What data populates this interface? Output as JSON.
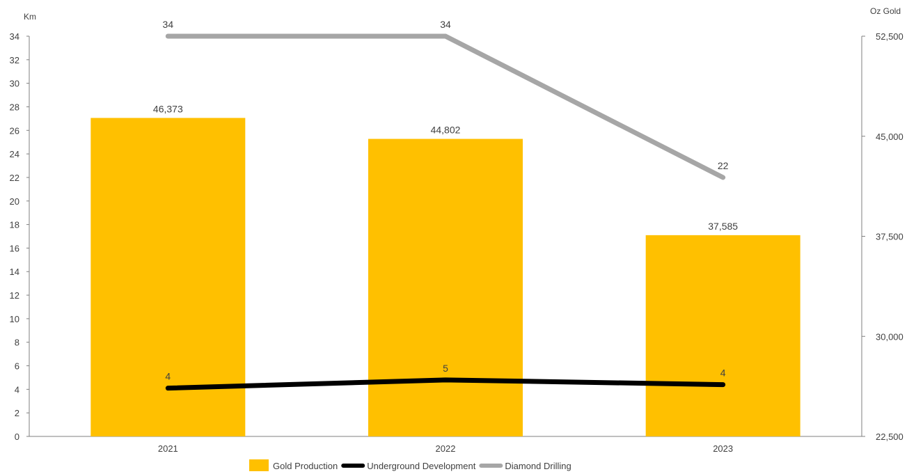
{
  "chart_data": {
    "type": "bar",
    "categories": [
      "2021",
      "2022",
      "2023"
    ],
    "left_axis": {
      "label": "Km",
      "ylim": [
        0,
        34
      ],
      "ticks": [
        "0",
        "2",
        "4",
        "6",
        "8",
        "10",
        "12",
        "14",
        "16",
        "18",
        "20",
        "22",
        "24",
        "26",
        "28",
        "30",
        "32",
        "34"
      ]
    },
    "right_axis": {
      "label": "Oz Gold",
      "ylim": [
        22500,
        52500
      ],
      "ticks": [
        "22,500",
        "30,000",
        "37,500",
        "45,000",
        "52,500"
      ]
    },
    "series": [
      {
        "name": "Gold Production",
        "type": "bar",
        "axis": "right",
        "values": [
          46373,
          44802,
          37585
        ],
        "labels": [
          "46,373",
          "44,802",
          "37,585"
        ],
        "color": "#FFC000"
      },
      {
        "name": "Underground Development",
        "type": "line",
        "axis": "left",
        "values": [
          4.1,
          4.8,
          4.4
        ],
        "labels": [
          "4",
          "5",
          "4"
        ],
        "color": "#000000"
      },
      {
        "name": "Diamond Drilling",
        "type": "line",
        "axis": "left",
        "values": [
          34,
          34,
          22
        ],
        "labels": [
          "34",
          "34",
          "22"
        ],
        "color": "#A6A6A6"
      }
    ],
    "grid": false,
    "legend_position": "bottom"
  }
}
